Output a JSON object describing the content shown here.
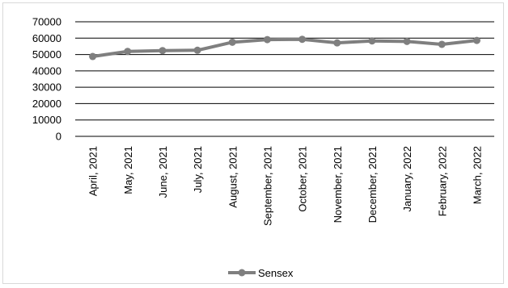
{
  "chart_data": {
    "type": "line",
    "title": "",
    "xlabel": "",
    "ylabel": "",
    "categories": [
      "April, 2021",
      "May, 2021",
      "June, 2021",
      "July, 2021",
      "August, 2021",
      "September, 2021",
      "October, 2021",
      "November, 2021",
      "December, 2021",
      "January, 2022",
      "February, 2022",
      "March, 2022"
    ],
    "series": [
      {
        "name": "Sensex",
        "values": [
          48800,
          51900,
          52400,
          52600,
          57500,
          59100,
          59300,
          57100,
          58300,
          58000,
          56200,
          58600
        ],
        "color": "#7f7f7f"
      }
    ],
    "ylim": [
      0,
      70000
    ],
    "y_ticks": [
      0,
      10000,
      20000,
      30000,
      40000,
      50000,
      60000,
      70000
    ],
    "grid": true,
    "legend_position": "bottom"
  }
}
